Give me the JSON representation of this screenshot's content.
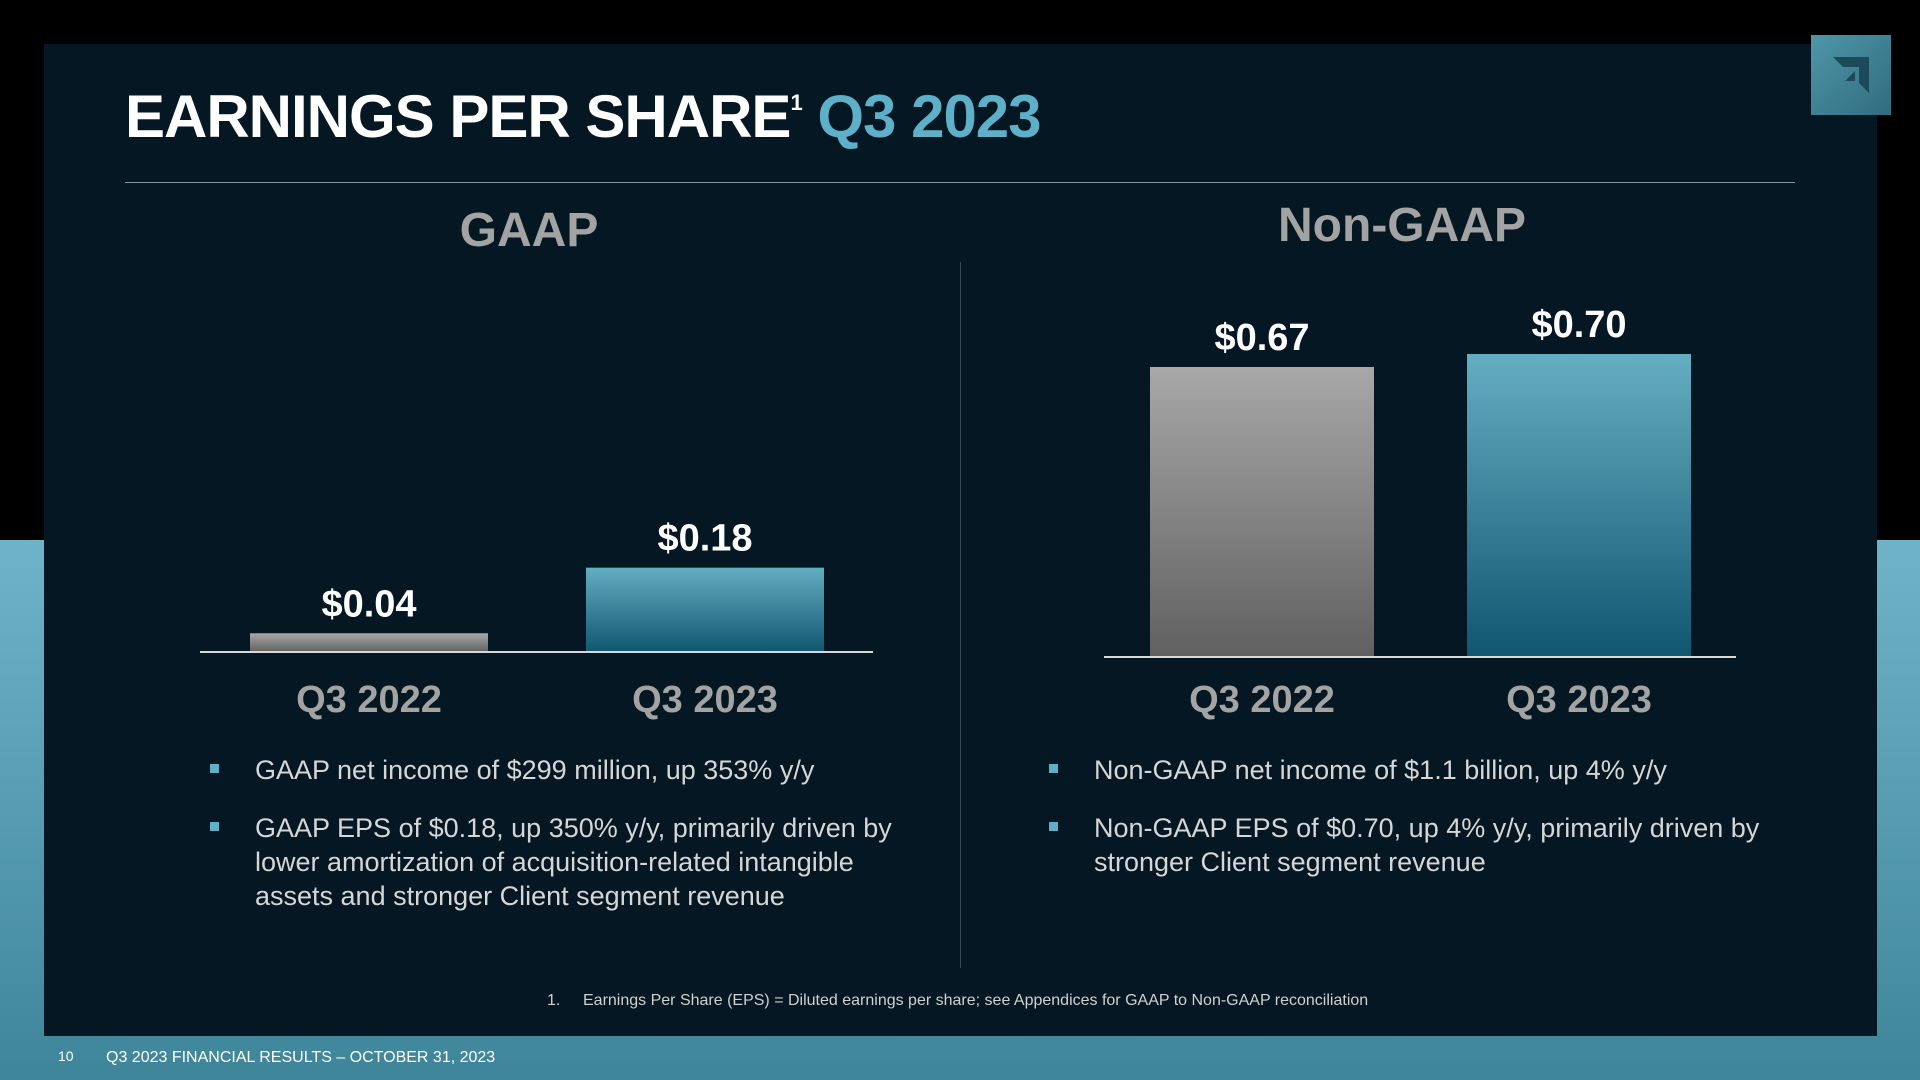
{
  "slide": {
    "title": "EARNINGS PER SHARE",
    "title_footnote_marker": "1",
    "title_period": "Q3 2023",
    "page_number": "10",
    "footer": "Q3 2023 FINANCIAL RESULTS – OCTOBER 31, 2023",
    "footnote_number": "1.",
    "footnote": "Earnings Per Share (EPS) = Diluted earnings per share; see Appendices for GAAP to Non-GAAP reconciliation",
    "logo_icon": "amd-arrow-logo-icon"
  },
  "colors": {
    "accent": "#5eb0c8",
    "bar_prior": "#8c8c8c",
    "bar_current": "#3b8ea6",
    "panel": "#041722"
  },
  "gaap": {
    "bullets": [
      "GAAP net income of $299 million, up 353% y/y",
      "GAAP EPS of $0.18, up 350% y/y, primarily driven by lower amortization of acquisition-related intangible assets and stronger Client segment revenue"
    ]
  },
  "nongaap": {
    "bullets": [
      "Non-GAAP net income of $1.1 billion, up 4% y/y",
      "Non-GAAP EPS of $0.70, up 4% y/y, primarily driven by stronger Client segment revenue"
    ]
  },
  "chart_data": [
    {
      "type": "bar",
      "title": "GAAP",
      "categories": [
        "Q3 2022",
        "Q3 2023"
      ],
      "values": [
        0.04,
        0.18
      ],
      "data_labels": [
        "$0.04",
        "$0.18"
      ],
      "ylim": [
        0,
        0.7
      ],
      "grid": false,
      "legend": "none"
    },
    {
      "type": "bar",
      "title": "Non-GAAP",
      "categories": [
        "Q3 2022",
        "Q3 2023"
      ],
      "values": [
        0.67,
        0.7
      ],
      "data_labels": [
        "$0.67",
        "$0.70"
      ],
      "ylim": [
        0,
        0.7
      ],
      "grid": false,
      "legend": "none"
    }
  ]
}
